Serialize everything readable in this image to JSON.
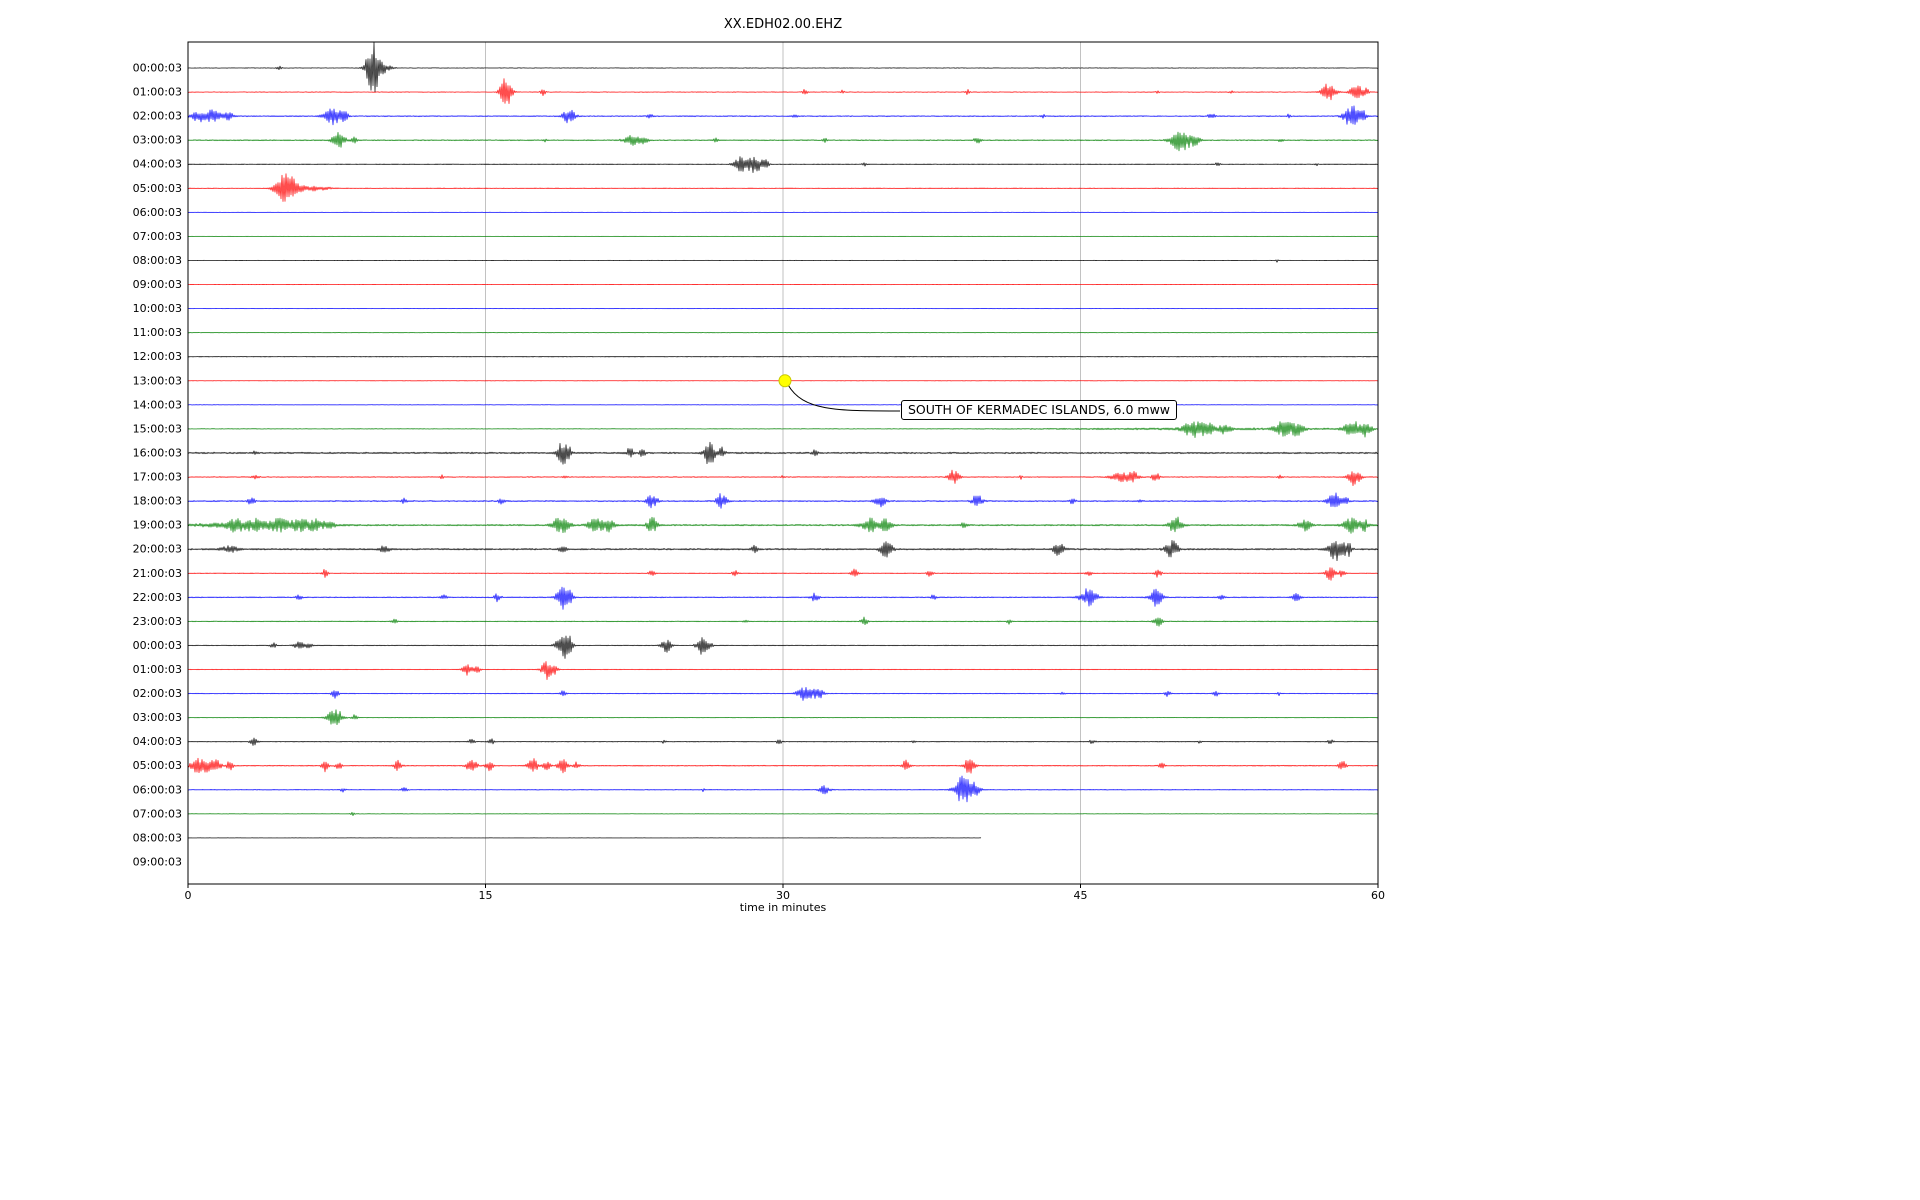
{
  "title": "XX.EDH02.00.EHZ",
  "chart_data": {
    "type": "line",
    "subtype": "seismogram-helicorder",
    "title": "XX.EDH02.00.EHZ",
    "xlabel": "time in minutes",
    "xlim": [
      0,
      60
    ],
    "xticks": [
      0,
      15,
      30,
      45,
      60
    ],
    "grid": "vertical gridlines at 15, 30, 45",
    "legend": "none",
    "colors": {
      "k": "#000000",
      "r": "#ff0000",
      "b": "#0000ff",
      "g": "#008000"
    },
    "annotation": {
      "text": "SOUTH OF KERMADEC ISLANDS, 6.0 mww",
      "row_label": "13:00:03",
      "row_index": 13,
      "time_minutes": 30.1,
      "marker_color": "#ffff00"
    },
    "rows": [
      {
        "label": "00:00:03",
        "color": "k",
        "noise": 0.3,
        "end": 60,
        "events": [
          [
            4.6,
            0.08,
            2
          ],
          [
            9.3,
            0.22,
            26
          ],
          [
            9.8,
            0.3,
            5
          ]
        ]
      },
      {
        "label": "01:00:03",
        "color": "r",
        "noise": 0.35,
        "end": 60,
        "events": [
          [
            16.0,
            0.18,
            15
          ],
          [
            16.3,
            0.1,
            5
          ],
          [
            17.9,
            0.08,
            4
          ],
          [
            31.1,
            0.08,
            3
          ],
          [
            33.0,
            0.05,
            2
          ],
          [
            39.3,
            0.08,
            2.5
          ],
          [
            48.9,
            0.05,
            2
          ],
          [
            52.6,
            0.06,
            2
          ],
          [
            57.5,
            0.25,
            9
          ],
          [
            58.9,
            0.22,
            8
          ],
          [
            59.4,
            0.1,
            4
          ]
        ]
      },
      {
        "label": "02:00:03",
        "color": "b",
        "noise": 0.55,
        "end": 60,
        "events": [
          [
            0.5,
            0.25,
            5
          ],
          [
            1.2,
            0.3,
            6
          ],
          [
            2.0,
            0.2,
            4
          ],
          [
            7.3,
            0.28,
            10
          ],
          [
            7.9,
            0.12,
            5
          ],
          [
            19.2,
            0.22,
            8
          ],
          [
            23.3,
            0.1,
            2.5
          ],
          [
            30.6,
            0.08,
            2
          ],
          [
            43.1,
            0.06,
            2
          ],
          [
            51.6,
            0.12,
            3
          ],
          [
            55.5,
            0.06,
            2
          ],
          [
            58.7,
            0.28,
            12
          ],
          [
            59.3,
            0.1,
            4
          ]
        ]
      },
      {
        "label": "03:00:03",
        "color": "g",
        "noise": 0.55,
        "end": 60,
        "events": [
          [
            7.6,
            0.22,
            9
          ],
          [
            8.4,
            0.1,
            3
          ],
          [
            18.0,
            0.06,
            2
          ],
          [
            22.4,
            0.3,
            5
          ],
          [
            23.0,
            0.15,
            3
          ],
          [
            26.6,
            0.08,
            2
          ],
          [
            32.1,
            0.08,
            2
          ],
          [
            39.8,
            0.12,
            3
          ],
          [
            50.0,
            0.3,
            14
          ],
          [
            50.7,
            0.2,
            6
          ],
          [
            55.1,
            0.08,
            2
          ]
        ]
      },
      {
        "label": "04:00:03",
        "color": "k",
        "noise": 0.3,
        "end": 60,
        "events": [
          [
            27.9,
            0.25,
            9
          ],
          [
            28.6,
            0.22,
            10
          ],
          [
            29.1,
            0.12,
            6
          ],
          [
            34.1,
            0.08,
            3
          ],
          [
            51.9,
            0.08,
            2.5
          ],
          [
            56.9,
            0.05,
            1.5
          ]
        ]
      },
      {
        "label": "05:00:03",
        "color": "r",
        "noise": 0.3,
        "end": 60,
        "events": [
          [
            4.8,
            0.3,
            13
          ],
          [
            5.3,
            0.25,
            7
          ],
          [
            6.3,
            0.6,
            2.5
          ]
        ]
      },
      {
        "label": "06:00:03",
        "color": "b",
        "noise": 0.25,
        "end": 60,
        "events": []
      },
      {
        "label": "07:00:03",
        "color": "g",
        "noise": 0.25,
        "end": 60,
        "events": []
      },
      {
        "label": "08:00:03",
        "color": "k",
        "noise": 0.25,
        "end": 60,
        "events": [
          [
            54.9,
            0.04,
            1.5
          ]
        ]
      },
      {
        "label": "09:00:03",
        "color": "r",
        "noise": 0.22,
        "end": 60,
        "events": []
      },
      {
        "label": "10:00:03",
        "color": "b",
        "noise": 0.22,
        "end": 60,
        "events": []
      },
      {
        "label": "11:00:03",
        "color": "g",
        "noise": 0.22,
        "end": 60,
        "events": []
      },
      {
        "label": "12:00:03",
        "color": "k",
        "noise": 0.3,
        "end": 60,
        "events": []
      },
      {
        "label": "13:00:03",
        "color": "r",
        "noise": 0.22,
        "end": 60,
        "events": []
      },
      {
        "label": "14:00:03",
        "color": "b",
        "noise": 0.22,
        "end": 60,
        "events": []
      },
      {
        "label": "15:00:03",
        "color": "g",
        "noise": 0.3,
        "end": 60,
        "events": [
          [
            52.0,
            6.0,
            0.9
          ],
          [
            50.7,
            0.35,
            8
          ],
          [
            51.4,
            0.25,
            6
          ],
          [
            52.3,
            0.2,
            5
          ],
          [
            55.2,
            0.3,
            7
          ],
          [
            55.9,
            0.25,
            6
          ],
          [
            58.7,
            0.3,
            8
          ],
          [
            59.4,
            0.2,
            7
          ]
        ]
      },
      {
        "label": "16:00:03",
        "color": "k",
        "noise": 0.85,
        "end": 60,
        "events": [
          [
            3.4,
            0.08,
            2
          ],
          [
            18.9,
            0.18,
            12
          ],
          [
            19.2,
            0.08,
            5
          ],
          [
            22.3,
            0.12,
            6
          ],
          [
            22.9,
            0.1,
            4
          ],
          [
            26.3,
            0.18,
            13
          ],
          [
            26.9,
            0.12,
            6
          ],
          [
            31.6,
            0.1,
            3
          ]
        ]
      },
      {
        "label": "17:00:03",
        "color": "r",
        "noise": 0.5,
        "end": 60,
        "events": [
          [
            3.4,
            0.1,
            3
          ],
          [
            12.8,
            0.05,
            2
          ],
          [
            19.0,
            0.08,
            2.5
          ],
          [
            30.0,
            0.05,
            2
          ],
          [
            38.6,
            0.18,
            8
          ],
          [
            42.0,
            0.05,
            2
          ],
          [
            47.0,
            0.3,
            6
          ],
          [
            47.7,
            0.2,
            5
          ],
          [
            48.8,
            0.12,
            6
          ],
          [
            55.1,
            0.08,
            2
          ],
          [
            58.8,
            0.2,
            9
          ]
        ]
      },
      {
        "label": "18:00:03",
        "color": "b",
        "noise": 0.65,
        "end": 60,
        "events": [
          [
            3.2,
            0.12,
            4
          ],
          [
            10.9,
            0.08,
            2.5
          ],
          [
            15.8,
            0.1,
            3
          ],
          [
            23.4,
            0.18,
            8
          ],
          [
            26.9,
            0.18,
            8
          ],
          [
            34.9,
            0.2,
            6
          ],
          [
            39.8,
            0.18,
            7
          ],
          [
            44.6,
            0.1,
            3
          ],
          [
            48.0,
            0.08,
            2.5
          ],
          [
            57.8,
            0.22,
            9
          ],
          [
            58.4,
            0.1,
            4
          ]
        ]
      },
      {
        "label": "19:00:03",
        "color": "g",
        "noise": 0.8,
        "end": 60,
        "events": [
          [
            3.0,
            2.2,
            2
          ],
          [
            2.4,
            0.25,
            6
          ],
          [
            3.3,
            0.25,
            5
          ],
          [
            4.6,
            0.4,
            5
          ],
          [
            5.6,
            0.35,
            5
          ],
          [
            6.4,
            0.25,
            5
          ],
          [
            7.1,
            0.2,
            4
          ],
          [
            18.8,
            0.28,
            10
          ],
          [
            20.6,
            0.3,
            7
          ],
          [
            21.3,
            0.2,
            6
          ],
          [
            23.4,
            0.18,
            8
          ],
          [
            34.4,
            0.3,
            7
          ],
          [
            35.2,
            0.2,
            6
          ],
          [
            39.1,
            0.1,
            3
          ],
          [
            49.8,
            0.22,
            9
          ],
          [
            56.3,
            0.2,
            6
          ],
          [
            58.6,
            0.25,
            8
          ],
          [
            59.3,
            0.15,
            6
          ]
        ]
      },
      {
        "label": "20:00:03",
        "color": "k",
        "noise": 0.85,
        "end": 60,
        "events": [
          [
            2.1,
            0.3,
            3
          ],
          [
            9.9,
            0.2,
            3
          ],
          [
            18.9,
            0.12,
            4
          ],
          [
            28.6,
            0.12,
            4
          ],
          [
            35.2,
            0.22,
            8
          ],
          [
            43.9,
            0.2,
            6
          ],
          [
            49.6,
            0.22,
            9
          ],
          [
            57.9,
            0.28,
            12
          ],
          [
            58.5,
            0.12,
            6
          ]
        ]
      },
      {
        "label": "21:00:03",
        "color": "r",
        "noise": 0.4,
        "end": 60,
        "events": [
          [
            6.9,
            0.1,
            4
          ],
          [
            23.4,
            0.1,
            4
          ],
          [
            27.6,
            0.1,
            3.5
          ],
          [
            33.6,
            0.12,
            4
          ],
          [
            37.4,
            0.1,
            3.5
          ],
          [
            45.4,
            0.1,
            3.5
          ],
          [
            48.9,
            0.12,
            4
          ],
          [
            57.6,
            0.18,
            7
          ],
          [
            58.2,
            0.1,
            4
          ]
        ]
      },
      {
        "label": "22:00:03",
        "color": "b",
        "noise": 0.55,
        "end": 60,
        "events": [
          [
            5.6,
            0.1,
            3
          ],
          [
            12.9,
            0.1,
            3
          ],
          [
            15.6,
            0.12,
            4
          ],
          [
            18.9,
            0.22,
            12
          ],
          [
            19.3,
            0.1,
            5
          ],
          [
            31.6,
            0.15,
            4
          ],
          [
            37.6,
            0.1,
            3
          ],
          [
            45.4,
            0.28,
            10
          ],
          [
            48.8,
            0.22,
            9
          ],
          [
            52.1,
            0.1,
            2.5
          ],
          [
            55.9,
            0.15,
            4
          ]
        ]
      },
      {
        "label": "23:00:03",
        "color": "g",
        "noise": 0.45,
        "end": 60,
        "events": [
          [
            10.4,
            0.1,
            3
          ],
          [
            28.1,
            0.08,
            2
          ],
          [
            34.1,
            0.12,
            4
          ],
          [
            41.4,
            0.08,
            2.5
          ],
          [
            48.9,
            0.15,
            5
          ]
        ]
      },
      {
        "label": "00:00:03",
        "color": "k",
        "noise": 0.4,
        "end": 60,
        "events": [
          [
            4.3,
            0.1,
            3
          ],
          [
            5.6,
            0.18,
            4
          ],
          [
            6.1,
            0.1,
            3
          ],
          [
            18.9,
            0.22,
            15
          ],
          [
            19.3,
            0.1,
            6
          ],
          [
            24.1,
            0.18,
            7
          ],
          [
            25.9,
            0.18,
            9
          ],
          [
            26.3,
            0.1,
            4
          ]
        ]
      },
      {
        "label": "01:00:03",
        "color": "r",
        "noise": 0.35,
        "end": 60,
        "events": [
          [
            14.1,
            0.18,
            6
          ],
          [
            14.6,
            0.1,
            3
          ],
          [
            18.1,
            0.18,
            10
          ],
          [
            18.5,
            0.1,
            4
          ]
        ]
      },
      {
        "label": "02:00:03",
        "color": "b",
        "noise": 0.4,
        "end": 60,
        "events": [
          [
            7.4,
            0.12,
            5
          ],
          [
            18.9,
            0.1,
            3
          ],
          [
            31.1,
            0.28,
            7
          ],
          [
            31.8,
            0.2,
            5
          ],
          [
            44.1,
            0.06,
            2
          ],
          [
            49.4,
            0.1,
            3
          ],
          [
            51.8,
            0.1,
            3
          ],
          [
            55.0,
            0.05,
            2
          ]
        ]
      },
      {
        "label": "03:00:03",
        "color": "g",
        "noise": 0.3,
        "end": 60,
        "events": [
          [
            7.4,
            0.25,
            11
          ],
          [
            8.4,
            0.1,
            3
          ]
        ]
      },
      {
        "label": "04:00:03",
        "color": "k",
        "noise": 0.4,
        "end": 60,
        "events": [
          [
            3.3,
            0.12,
            5
          ],
          [
            14.3,
            0.1,
            3
          ],
          [
            15.3,
            0.1,
            3
          ],
          [
            24.0,
            0.06,
            2
          ],
          [
            29.8,
            0.1,
            2.5
          ],
          [
            36.6,
            0.06,
            2
          ],
          [
            45.6,
            0.1,
            2.5
          ],
          [
            51.0,
            0.05,
            2
          ],
          [
            57.6,
            0.1,
            2.5
          ]
        ]
      },
      {
        "label": "05:00:03",
        "color": "r",
        "noise": 0.5,
        "end": 60,
        "events": [
          [
            0.4,
            0.18,
            8
          ],
          [
            0.9,
            0.18,
            7
          ],
          [
            1.4,
            0.18,
            6
          ],
          [
            2.1,
            0.12,
            5
          ],
          [
            6.9,
            0.12,
            6
          ],
          [
            7.6,
            0.1,
            4
          ],
          [
            10.6,
            0.12,
            6
          ],
          [
            14.3,
            0.18,
            7
          ],
          [
            15.2,
            0.12,
            6
          ],
          [
            17.4,
            0.18,
            7
          ],
          [
            18.1,
            0.12,
            6
          ],
          [
            18.9,
            0.18,
            7
          ],
          [
            19.6,
            0.1,
            4
          ],
          [
            36.2,
            0.12,
            6
          ],
          [
            39.4,
            0.18,
            8
          ],
          [
            49.1,
            0.1,
            3
          ],
          [
            58.2,
            0.12,
            5
          ]
        ]
      },
      {
        "label": "06:00:03",
        "color": "b",
        "noise": 0.4,
        "end": 60,
        "events": [
          [
            7.8,
            0.1,
            2.5
          ],
          [
            10.9,
            0.1,
            2.5
          ],
          [
            26.0,
            0.05,
            2
          ],
          [
            32.1,
            0.18,
            5
          ],
          [
            39.1,
            0.3,
            16
          ],
          [
            39.7,
            0.18,
            6
          ]
        ]
      },
      {
        "label": "07:00:03",
        "color": "g",
        "noise": 0.25,
        "end": 60,
        "events": [
          [
            8.3,
            0.06,
            2
          ]
        ]
      },
      {
        "label": "08:00:03",
        "color": "k",
        "noise": 0.2,
        "end": 40,
        "events": []
      },
      {
        "label": "09:00:03",
        "color": "r",
        "noise": 0,
        "end": 0,
        "events": []
      }
    ]
  }
}
